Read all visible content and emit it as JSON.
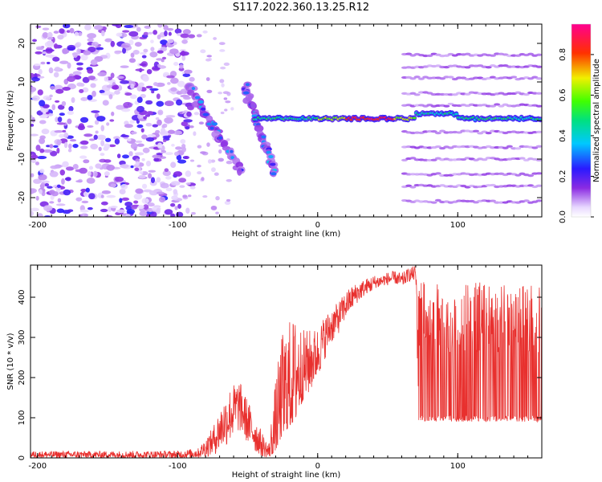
{
  "title": "S117.2022.360.13.25.R12",
  "colors": {
    "snr_line": "#e8302e",
    "axis": "#000000"
  },
  "chart_data": [
    {
      "type": "heatmap",
      "xlabel": "Height of straight line (km)",
      "ylabel": "Frequency (Hz)",
      "xlim": [
        -205,
        160
      ],
      "ylim": [
        -25,
        25
      ],
      "xticks": [
        -200,
        -100,
        0,
        100
      ],
      "yticks": [
        -20,
        -10,
        0,
        10,
        20
      ],
      "colorbar": {
        "label": "Normalized spectral amplitude",
        "range": [
          0.0,
          0.95
        ],
        "ticks": [
          0.0,
          0.2,
          0.4,
          0.6,
          0.8
        ],
        "tick_labels": [
          "0.0",
          "0.2",
          "0.4",
          "0.6",
          "0.8"
        ],
        "colormap": "rainbow (white-violet-blue-cyan-green-yellow-red-magenta)"
      },
      "features": {
        "noise_region_x": [
          -205,
          -90
        ],
        "dispersive_arcs": [
          {
            "x": [
              -92,
              -55
            ],
            "freq": [
              9,
              -13
            ]
          },
          {
            "x": [
              -52,
              -30
            ],
            "freq": [
              9,
              -14
            ]
          }
        ],
        "carrier": {
          "x": [
            -45,
            160
          ],
          "freq": 0.5,
          "peak_x": [
            20,
            55
          ]
        },
        "harmonic_bands_x": [
          62,
          160
        ],
        "harmonic_band_freqs": [
          -21,
          -17,
          -14,
          -10,
          -7,
          -3,
          4,
          7,
          11,
          14,
          17
        ]
      }
    },
    {
      "type": "line",
      "xlabel": "Height of straight line (km)",
      "ylabel": "SNR (10 * v/v)",
      "xlim": [
        -205,
        160
      ],
      "ylim": [
        0,
        480
      ],
      "xticks": [
        -200,
        -100,
        0,
        100
      ],
      "yticks": [
        0,
        100,
        200,
        300,
        400
      ],
      "series": [
        {
          "x": [
            -205,
            -150,
            -100,
            -85,
            -75,
            -68,
            -62,
            -56,
            -50,
            -45,
            -40,
            -35,
            -30,
            -25,
            -20,
            -15,
            -10,
            -5,
            0,
            5,
            10,
            15,
            20,
            25,
            30,
            35,
            40,
            45,
            50,
            55,
            60,
            65,
            70,
            72,
            80,
            90,
            100,
            110,
            120,
            130,
            140,
            150,
            160
          ],
          "y": [
            8,
            8,
            8,
            12,
            40,
            80,
            110,
            130,
            90,
            60,
            30,
            15,
            80,
            150,
            180,
            210,
            220,
            240,
            260,
            300,
            330,
            350,
            380,
            400,
            415,
            425,
            435,
            440,
            445,
            448,
            440,
            455,
            460,
            250,
            260,
            255,
            260,
            255,
            260,
            258,
            255,
            258,
            255
          ],
          "y_min_envelope": [
            0,
            0,
            0,
            0,
            5,
            20,
            40,
            60,
            40,
            20,
            5,
            0,
            20,
            60,
            80,
            100,
            150,
            170,
            200,
            240,
            280,
            310,
            340,
            370,
            395,
            410,
            420,
            430,
            430,
            435,
            430,
            440,
            440,
            90,
            90,
            90,
            90,
            90,
            90,
            90,
            90,
            90,
            90
          ],
          "y_max_envelope": [
            18,
            18,
            20,
            25,
            75,
            140,
            180,
            190,
            150,
            110,
            80,
            40,
            250,
            400,
            410,
            380,
            350,
            330,
            330,
            350,
            370,
            390,
            410,
            430,
            445,
            455,
            460,
            462,
            465,
            470,
            470,
            475,
            480,
            440,
            435,
            430,
            430,
            440,
            435,
            430,
            430,
            432,
            430
          ]
        }
      ]
    }
  ]
}
